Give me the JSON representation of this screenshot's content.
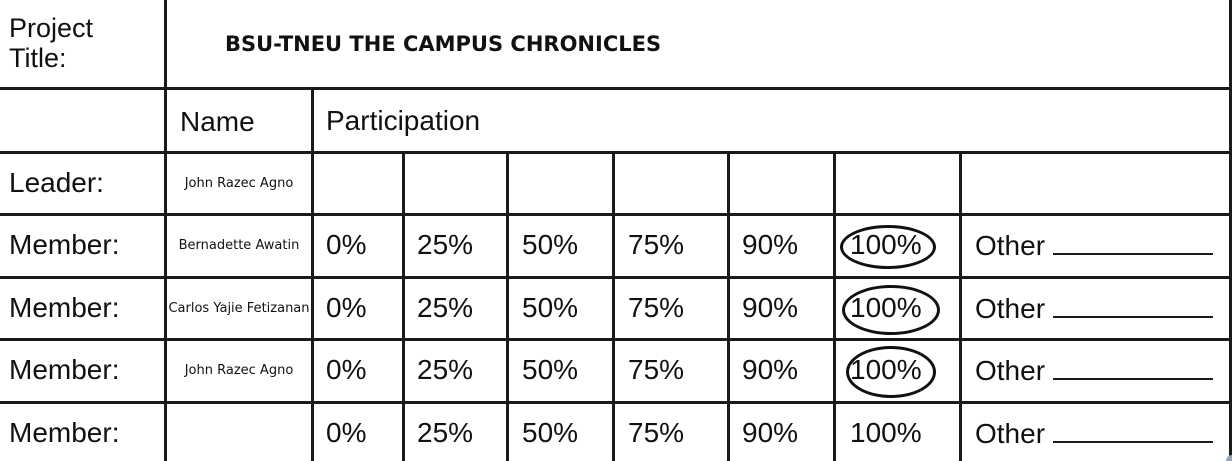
{
  "project": {
    "title_label_line1": "Project",
    "title_label_line2": "Title:",
    "title_value": "BSU-TNEU THE CAMPUS CHRONICLES"
  },
  "header": {
    "name_label": "Name",
    "participation_label": "Participation"
  },
  "percent_options": [
    "0%",
    "25%",
    "50%",
    "75%",
    "90%",
    "100%"
  ],
  "other_label": "Other",
  "rows": [
    {
      "role": "Leader:",
      "name": "John Razec Agno",
      "show_options": false,
      "selected": ""
    },
    {
      "role": "Member:",
      "name": "Bernadette Awatin",
      "show_options": true,
      "selected": "100%"
    },
    {
      "role": "Member:",
      "name": "Carlos Yajie Fetizanan",
      "show_options": true,
      "selected": "100%"
    },
    {
      "role": "Member:",
      "name": "John Razec Agno",
      "show_options": true,
      "selected": "100%"
    },
    {
      "role": "Member:",
      "name": "",
      "show_options": true,
      "selected": ""
    }
  ]
}
